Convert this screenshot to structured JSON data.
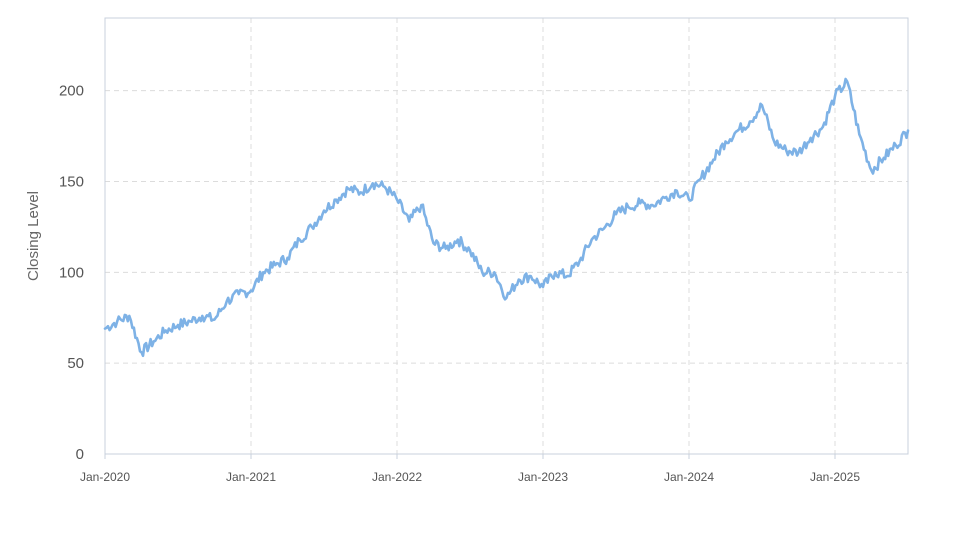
{
  "chart_data": {
    "type": "line",
    "title": "",
    "xlabel": "",
    "ylabel": "Closing Level",
    "ylim": [
      0,
      240
    ],
    "xlim": [
      "2020-01",
      "2025-07"
    ],
    "yticks": [
      0,
      50,
      100,
      150,
      200
    ],
    "yticklabels": [
      "0",
      "50",
      "100",
      "150",
      "200"
    ],
    "xticks": [
      "2020-01",
      "2021-01",
      "2022-01",
      "2023-01",
      "2024-01",
      "2025-01"
    ],
    "xticklabels": [
      "Jan-2020",
      "Jan-2021",
      "Jan-2022",
      "Jan-2023",
      "Jan-2024",
      "Jan-2025"
    ],
    "grid": true,
    "legend": "none",
    "line_color": "#7eb2e6",
    "series": [
      {
        "x": [
          "2020-01",
          "2020-02",
          "2020-03",
          "2020-04",
          "2020-05",
          "2020-06",
          "2020-07",
          "2020-08",
          "2020-09",
          "2020-10",
          "2020-11",
          "2020-12",
          "2021-01",
          "2021-02",
          "2021-03",
          "2021-04",
          "2021-05",
          "2021-06",
          "2021-07",
          "2021-08",
          "2021-09",
          "2021-10",
          "2021-11",
          "2021-12",
          "2022-01",
          "2022-02",
          "2022-03",
          "2022-04",
          "2022-05",
          "2022-06",
          "2022-07",
          "2022-08",
          "2022-09",
          "2022-10",
          "2022-11",
          "2022-12",
          "2023-01",
          "2023-02",
          "2023-03",
          "2023-04",
          "2023-05",
          "2023-06",
          "2023-07",
          "2023-08",
          "2023-09",
          "2023-10",
          "2023-11",
          "2023-12",
          "2024-01",
          "2024-02",
          "2024-03",
          "2024-04",
          "2024-05",
          "2024-06",
          "2024-07",
          "2024-08",
          "2024-09",
          "2024-10",
          "2024-11",
          "2024-12",
          "2025-01",
          "2025-02",
          "2025-03",
          "2025-04",
          "2025-05",
          "2025-06",
          "2025-07"
        ],
        "values": [
          69,
          73,
          76,
          56,
          62,
          68,
          71,
          73,
          76,
          74,
          84,
          88,
          90,
          100,
          104,
          108,
          118,
          125,
          134,
          140,
          146,
          144,
          149,
          147,
          140,
          128,
          137,
          116,
          113,
          118,
          112,
          100,
          100,
          86,
          96,
          98,
          92,
          100,
          98,
          106,
          118,
          124,
          132,
          136,
          138,
          137,
          141,
          145,
          140,
          152,
          162,
          172,
          178,
          183,
          192,
          172,
          167,
          166,
          174,
          180,
          197,
          205,
          176,
          156,
          163,
          170,
          178
        ]
      }
    ]
  }
}
